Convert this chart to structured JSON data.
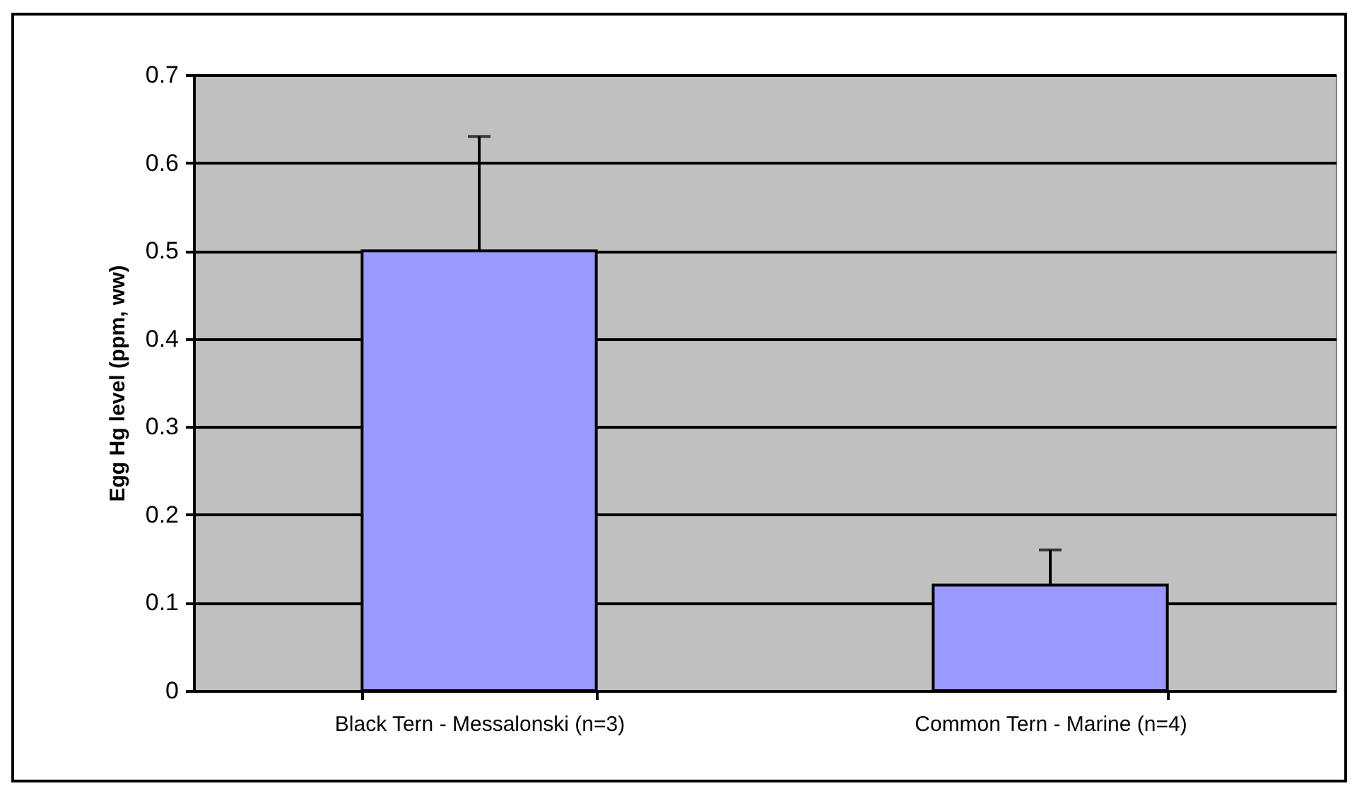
{
  "chart_data": {
    "type": "bar",
    "ylabel": "Egg Hg level (ppm, ww)",
    "categories": [
      "Black Tern - Messalonski (n=3)",
      "Common Tern - Marine (n=4)"
    ],
    "values": [
      0.5,
      0.12
    ],
    "color": "#9999ff",
    "errors": [
      [
        0.5,
        0.63
      ],
      [
        0.12,
        0.16
      ]
    ],
    "ylim": [
      0,
      0.7
    ],
    "yticks": [
      0,
      0.1,
      0.2,
      0.3,
      0.4,
      0.5,
      0.6,
      0.7
    ],
    "grid": "y"
  }
}
